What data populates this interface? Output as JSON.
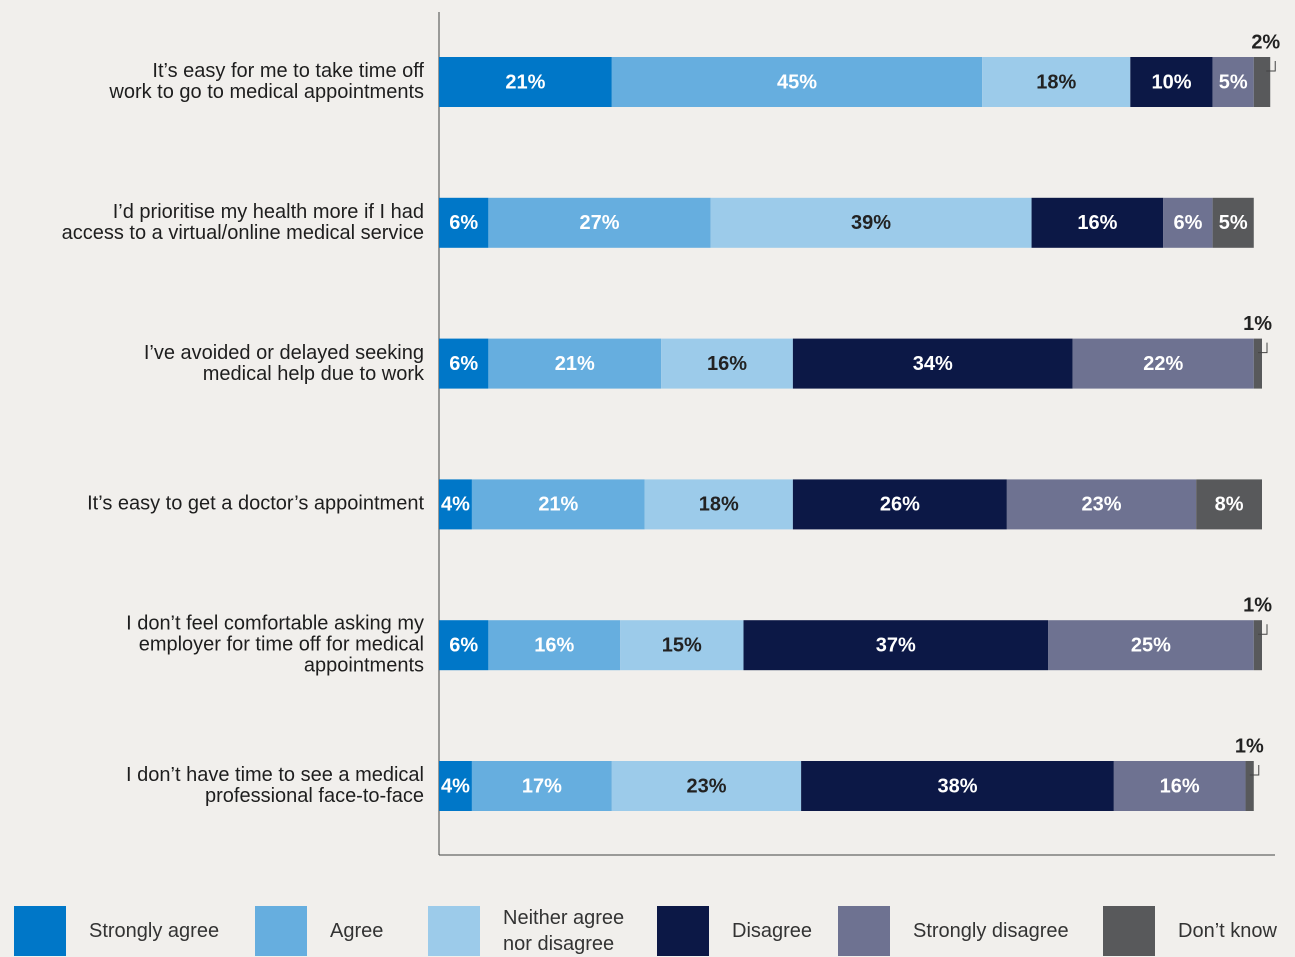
{
  "chart_data": {
    "type": "stacked-bar-horizontal",
    "categories": [
      "It’s easy for me to take time off\nwork to go to medical appointments",
      "I’d prioritise my health more if I had\naccess to a virtual/online medical service",
      "I’ve avoided or delayed seeking\nmedical help due to work",
      "It’s easy to get a doctor’s appointment",
      "I don’t feel comfortable asking my\nemployer for time off for medical\nappointments",
      "I don’t have time to see a medical\nprofessional face-to-face"
    ],
    "xlim": [
      0,
      100
    ],
    "series": [
      {
        "name": "Strongly agree",
        "color": "#0077c8",
        "values": [
          21,
          6,
          6,
          4,
          6,
          4
        ],
        "value_labels": [
          "21%",
          "6%",
          "6%",
          "4%",
          "6%",
          "4%"
        ]
      },
      {
        "name": "Agree",
        "color": "#66aedf",
        "values": [
          45,
          27,
          21,
          21,
          16,
          17
        ],
        "value_labels": [
          "45%",
          "27%",
          "21%",
          "21%",
          "16%",
          "17%"
        ]
      },
      {
        "name": "Neither agree\nnor disagree",
        "color": "#9ccbea",
        "values": [
          18,
          39,
          16,
          18,
          15,
          23
        ],
        "value_labels": [
          "18%",
          "39%",
          "16%",
          "18%",
          "15%",
          "23%"
        ]
      },
      {
        "name": "Disagree",
        "color": "#0c1846",
        "values": [
          10,
          16,
          34,
          26,
          37,
          38
        ],
        "value_labels": [
          "10%",
          "16%",
          "34%",
          "26%",
          "37%",
          "38%"
        ]
      },
      {
        "name": "Strongly disagree",
        "color": "#6e7291",
        "values": [
          5,
          6,
          22,
          23,
          25,
          16
        ],
        "value_labels": [
          "5%",
          "6%",
          "22%",
          "23%",
          "25%",
          "16%"
        ]
      },
      {
        "name": "Don’t know",
        "color": "#58595b",
        "values": [
          2,
          5,
          1,
          8,
          1,
          1
        ],
        "value_labels": [
          "2%",
          "5%",
          "1%",
          "8%",
          "1%",
          "1%"
        ]
      }
    ]
  }
}
